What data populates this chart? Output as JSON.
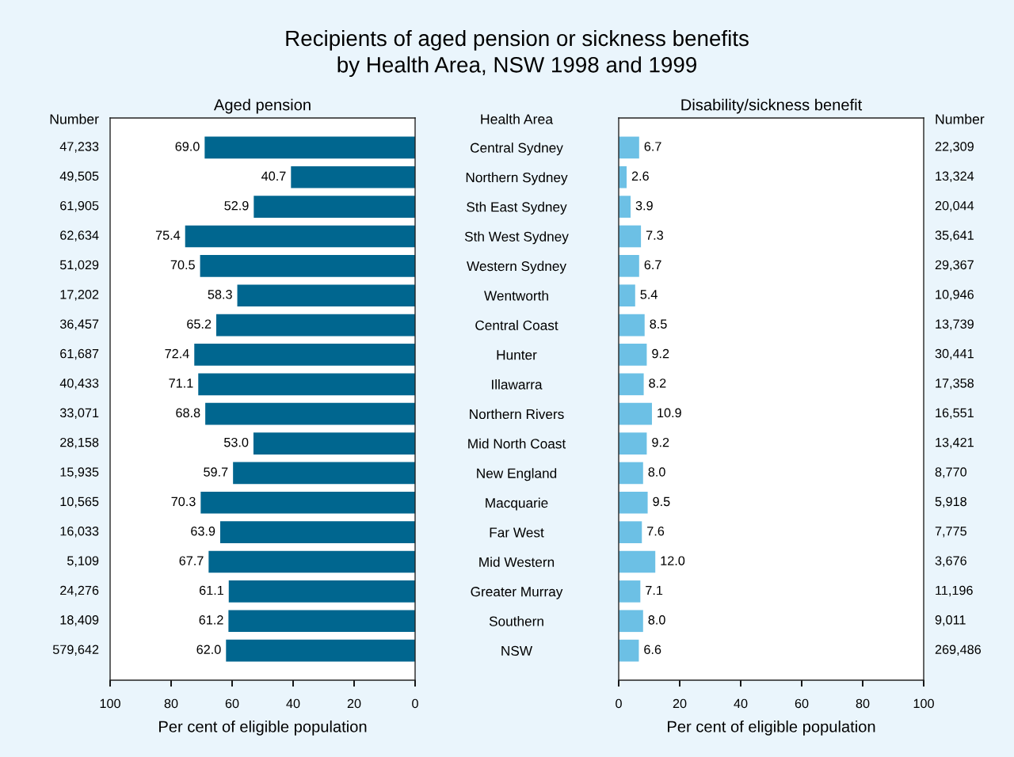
{
  "chart_data": [
    {
      "type": "bar",
      "orientation": "horizontal",
      "title": "Recipients of aged pension or sickness benefits\nby Health Area, NSW 1998 and 1999",
      "subtitle": "Aged pension",
      "xlabel": "Per cent of eligible population",
      "ylabel": "Health Area",
      "y2label": "Number",
      "categories": [
        "Central Sydney",
        "Northern Sydney",
        "Sth East Sydney",
        "Sth West Sydney",
        "Western Sydney",
        "Wentworth",
        "Central Coast",
        "Hunter",
        "Illawarra",
        "Northern Rivers",
        "Mid North Coast",
        "New England",
        "Macquarie",
        "Far West",
        "Mid Western",
        "Greater Murray",
        "Southern",
        "NSW"
      ],
      "y2_categories": [
        "47,233",
        "49,505",
        "61,905",
        "62,634",
        "51,029",
        "17,202",
        "36,457",
        "61,687",
        "40,433",
        "33,071",
        "28,158",
        "15,935",
        "10,565",
        "16,033",
        "5,109",
        "24,276",
        "18,409",
        "579,642"
      ],
      "series": [
        {
          "color": "#00668f",
          "values": [
            69.0,
            40.7,
            52.9,
            75.4,
            70.5,
            58.3,
            65.2,
            72.4,
            71.1,
            68.8,
            53.0,
            59.7,
            70.3,
            63.9,
            67.7,
            61.1,
            61.2,
            62.0
          ],
          "value_labels": [
            "69.0",
            "40.7",
            "52.9",
            "75.4",
            "70.5",
            "58.3",
            "65.2",
            "72.4",
            "71.1",
            "68.8",
            "53.0",
            "59.7",
            "70.3",
            "63.9",
            "67.7",
            "61.1",
            "61.2",
            "62.0"
          ]
        }
      ],
      "xlim": [
        100,
        0
      ],
      "xticks": [
        100,
        80,
        60,
        40,
        20,
        0
      ]
    },
    {
      "type": "bar",
      "orientation": "horizontal",
      "subtitle": "Disability/sickness benefit",
      "xlabel": "Per cent of eligible population",
      "y2label": "Number",
      "categories": [
        null,
        null,
        null,
        null,
        null,
        null,
        null,
        null,
        null,
        null,
        null,
        null,
        null,
        null,
        null,
        null,
        null,
        null
      ],
      "y2_categories": [
        "22,309",
        "13,324",
        "20,044",
        "35,641",
        "29,367",
        "10,946",
        "13,739",
        "30,441",
        "17,358",
        "16,551",
        "13,421",
        "8,770",
        "5,918",
        "7,775",
        "3,676",
        "11,196",
        "9,011",
        "269,486"
      ],
      "series": [
        {
          "color": "#6cc0e5",
          "values": [
            6.7,
            2.6,
            3.9,
            7.3,
            6.7,
            5.4,
            8.5,
            9.2,
            8.2,
            10.9,
            9.2,
            8.0,
            9.5,
            7.6,
            12.0,
            7.1,
            8.0,
            6.6
          ],
          "value_labels": [
            "6.7",
            "2.6",
            "3.9",
            "7.3",
            "6.7",
            "5.4",
            "8.5",
            "9.2",
            "8.2",
            "10.9",
            "9.2",
            "8.0",
            "9.5",
            "7.6",
            "12.0",
            "7.1",
            "8.0",
            "6.6"
          ]
        }
      ],
      "xlim": [
        0,
        100
      ],
      "xticks": [
        0,
        20,
        40,
        60,
        80,
        100
      ]
    }
  ]
}
